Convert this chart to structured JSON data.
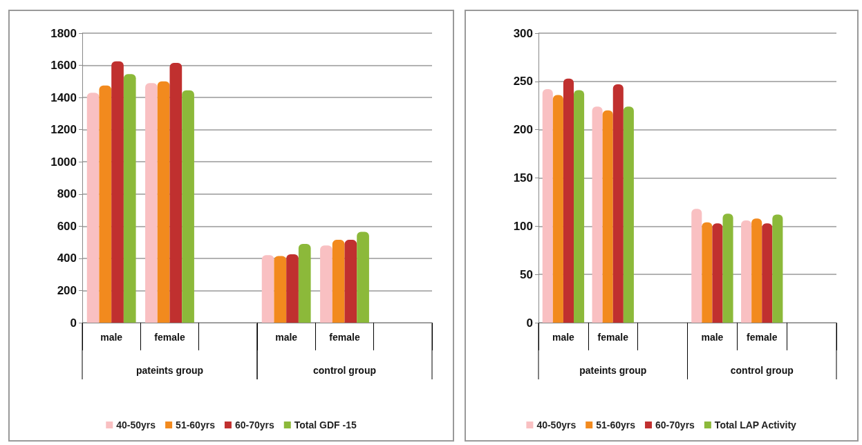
{
  "chart_data": [
    {
      "type": "bar",
      "categories": [
        "male",
        "female",
        null,
        "male",
        "female",
        null
      ],
      "series": [
        {
          "name": "40-50yrs",
          "color": "#f9c0c2",
          "values": [
            1430,
            1490,
            null,
            420,
            480,
            null
          ]
        },
        {
          "name": "51-60yrs",
          "color": "#f28a1e",
          "values": [
            1475,
            1500,
            null,
            415,
            515,
            null
          ]
        },
        {
          "name": "60-70yrs",
          "color": "#c0302f",
          "values": [
            1625,
            1615,
            null,
            425,
            515,
            null
          ]
        },
        {
          "name": "Total GDF -15",
          "color": "#8cb93a",
          "values": [
            1545,
            1445,
            null,
            490,
            565,
            null
          ]
        }
      ],
      "ylim": [
        0,
        1800
      ],
      "yticks": [
        0,
        200,
        400,
        600,
        800,
        1000,
        1200,
        1400,
        1600,
        1800
      ],
      "grid": "y",
      "legend": "bottom",
      "annotations": [
        "pateints group",
        "control group"
      ]
    },
    {
      "type": "bar",
      "categories": [
        "male",
        "female",
        null,
        "male",
        "female",
        null
      ],
      "series": [
        {
          "name": "40-50yrs",
          "color": "#f9c0c2",
          "values": [
            242,
            224,
            null,
            118,
            106,
            null
          ]
        },
        {
          "name": "51-60yrs",
          "color": "#f28a1e",
          "values": [
            236,
            220,
            null,
            104,
            108,
            null
          ]
        },
        {
          "name": "60-70yrs",
          "color": "#c0302f",
          "values": [
            253,
            247,
            null,
            103,
            103,
            null
          ]
        },
        {
          "name": "Total LAP Activity",
          "color": "#8cb93a",
          "values": [
            241,
            224,
            null,
            113,
            112,
            null
          ]
        }
      ],
      "ylim": [
        0,
        300
      ],
      "yticks": [
        0,
        50,
        100,
        150,
        200,
        250,
        300
      ],
      "grid": "y",
      "legend": "bottom",
      "annotations": [
        "pateints group",
        "control group"
      ]
    }
  ]
}
